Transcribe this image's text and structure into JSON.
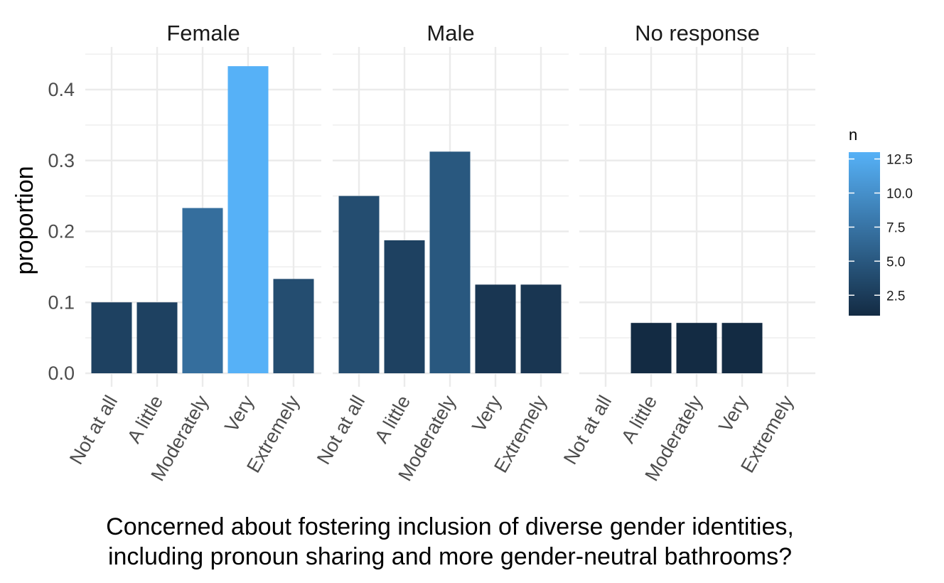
{
  "chart_data": {
    "type": "bar",
    "facet_by": "gender",
    "categories": [
      "Not at all",
      "A little",
      "Moderately",
      "Very",
      "Extremely"
    ],
    "facets": [
      {
        "label": "Female",
        "values": [
          0.1,
          0.1,
          0.233,
          0.433,
          0.133
        ],
        "n": [
          3,
          3,
          7,
          13,
          4
        ]
      },
      {
        "label": "Male",
        "values": [
          0.25,
          0.1875,
          0.3125,
          0.125,
          0.125
        ],
        "n": [
          4,
          3,
          5,
          2,
          2
        ]
      },
      {
        "label": "No response",
        "values": [
          0,
          0.071,
          0.071,
          0.071,
          0
        ],
        "n": [
          0,
          1,
          1,
          1,
          0
        ]
      }
    ],
    "xlabel_lines": [
      "Concerned about fostering inclusion of diverse gender identities,",
      "including pronoun sharing and more gender-neutral bathrooms?"
    ],
    "ylabel": "proportion",
    "ylim": [
      0,
      0.44
    ],
    "yticks": [
      0.0,
      0.1,
      0.2,
      0.3,
      0.4
    ],
    "ytick_labels": [
      "0.0",
      "0.1",
      "0.2",
      "0.3",
      "0.4"
    ],
    "grid": true,
    "legend": {
      "title": "n",
      "placement": "right",
      "ticks": [
        2.5,
        5.0,
        7.5,
        10.0,
        12.5
      ],
      "tick_labels": [
        "2.5",
        "5.0",
        "7.5",
        "10.0",
        "12.5"
      ],
      "range": [
        1,
        13
      ],
      "color_low": "#132B43",
      "color_high": "#56B1F7"
    },
    "colors": {
      "background": "#FFFFFF",
      "grid": "#EBEBEB",
      "text": "#000000",
      "tick_text": "#4D4D4D"
    }
  }
}
